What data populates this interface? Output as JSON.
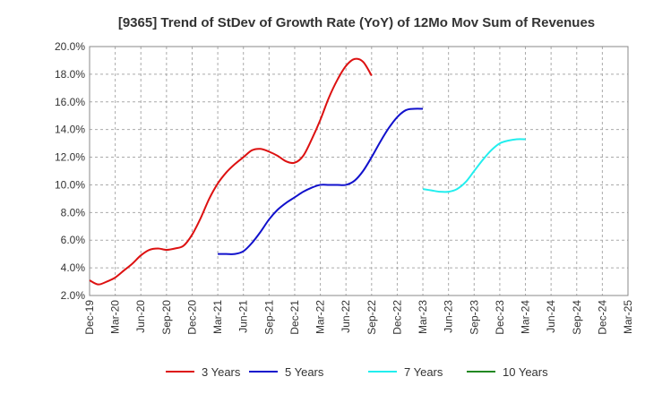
{
  "chart_data": {
    "type": "line",
    "title": "[9365]  Trend of StDev of Growth Rate (YoY) of 12Mo Mov Sum of Revenues",
    "xlabel": "",
    "ylabel": "",
    "ylim": [
      2.0,
      20.0
    ],
    "y_ticks": [
      "2.0%",
      "4.0%",
      "6.0%",
      "8.0%",
      "10.0%",
      "12.0%",
      "14.0%",
      "16.0%",
      "18.0%",
      "20.0%"
    ],
    "x_ticks": [
      "Dec-19",
      "Mar-20",
      "Jun-20",
      "Sep-20",
      "Dec-20",
      "Mar-21",
      "Jun-21",
      "Sep-21",
      "Dec-21",
      "Mar-22",
      "Jun-22",
      "Sep-22",
      "Dec-22",
      "Mar-23",
      "Jun-23",
      "Sep-23",
      "Dec-23",
      "Mar-24",
      "Jun-24",
      "Sep-24",
      "Dec-24",
      "Mar-25"
    ],
    "grid": true,
    "legend_position": "bottom",
    "series": [
      {
        "name": "3 Years",
        "color": "#dd1111",
        "start_index": 0,
        "values": [
          3.1,
          2.8,
          3.0,
          3.3,
          3.8,
          4.3,
          4.9,
          5.3,
          5.4,
          5.3,
          5.4,
          5.6,
          6.4,
          7.6,
          9.0,
          10.1,
          10.9,
          11.5,
          12.0,
          12.5,
          12.6,
          12.4,
          12.1,
          11.7,
          11.6,
          12.1,
          13.3,
          14.7,
          16.3,
          17.6,
          18.6,
          19.1,
          18.9,
          17.9
        ]
      },
      {
        "name": "5 Years",
        "color": "#1111cc",
        "start_index": 15,
        "values": [
          5.0,
          5.0,
          5.0,
          5.2,
          5.8,
          6.6,
          7.5,
          8.2,
          8.7,
          9.1,
          9.5,
          9.8,
          10.0,
          10.0,
          10.0,
          10.0,
          10.3,
          11.0,
          12.0,
          13.1,
          14.1,
          14.9,
          15.4,
          15.5,
          15.5
        ]
      },
      {
        "name": "7 Years",
        "color": "#22eeee",
        "start_index": 39,
        "values": [
          9.7,
          9.6,
          9.5,
          9.5,
          9.7,
          10.2,
          11.0,
          11.8,
          12.5,
          13.0,
          13.2,
          13.3,
          13.3
        ]
      },
      {
        "name": "10 Years",
        "color": "#228822",
        "start_index": 0,
        "values": []
      }
    ]
  }
}
